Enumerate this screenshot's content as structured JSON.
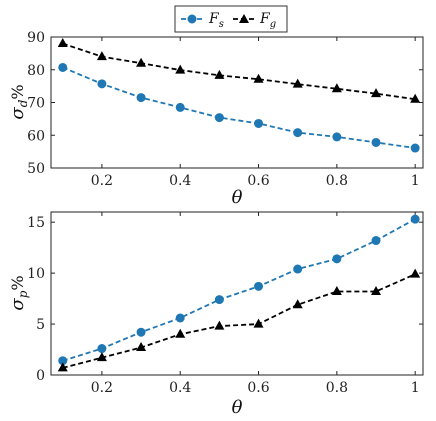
{
  "legend": {
    "entries": [
      {
        "label": "F",
        "sub": "s",
        "color": "#1f77b4",
        "marker": "circle"
      },
      {
        "label": "F",
        "sub": "g",
        "color": "#000000",
        "marker": "triangle"
      }
    ]
  },
  "chart_data": [
    {
      "type": "line",
      "title": "",
      "xlabel": "θ",
      "ylabel": "σ",
      "ylabel_sub": "d",
      "ylabel_suffix": "%",
      "xlim": [
        0.07,
        1.02
      ],
      "ylim": [
        50,
        90
      ],
      "xticks": [
        0.2,
        0.4,
        0.6,
        0.8,
        1
      ],
      "xtick_labels": [
        "0.2",
        "0.4",
        "0.6",
        "0.8",
        "1"
      ],
      "yticks": [
        50,
        60,
        70,
        80,
        90
      ],
      "ytick_labels": [
        "50",
        "60",
        "70",
        "80",
        "90"
      ],
      "x": [
        0.1,
        0.2,
        0.3,
        0.4,
        0.5,
        0.6,
        0.7,
        0.8,
        0.9,
        1.0
      ],
      "series": [
        {
          "key": "Fs",
          "color": "#1f77b4",
          "marker": "circle",
          "values": [
            80.7,
            75.7,
            71.5,
            68.5,
            65.4,
            63.6,
            60.8,
            59.5,
            57.8,
            56.1
          ]
        },
        {
          "key": "Fg",
          "color": "#000000",
          "marker": "triangle",
          "values": [
            88.0,
            84.0,
            82.0,
            79.9,
            78.3,
            77.1,
            75.6,
            74.2,
            72.7,
            71.0
          ]
        }
      ],
      "grid": false,
      "legend_position": "top-center"
    },
    {
      "type": "line",
      "title": "",
      "xlabel": "θ",
      "ylabel": "σ",
      "ylabel_sub": "p",
      "ylabel_suffix": "%",
      "xlim": [
        0.07,
        1.02
      ],
      "ylim": [
        0,
        16
      ],
      "xticks": [
        0.2,
        0.4,
        0.6,
        0.8,
        1
      ],
      "xtick_labels": [
        "0.2",
        "0.4",
        "0.6",
        "0.8",
        "1"
      ],
      "yticks": [
        0,
        5,
        10,
        15
      ],
      "ytick_labels": [
        "0",
        "5",
        "10",
        "15"
      ],
      "x": [
        0.1,
        0.2,
        0.3,
        0.4,
        0.5,
        0.6,
        0.7,
        0.8,
        0.9,
        1.0
      ],
      "series": [
        {
          "key": "Fs",
          "color": "#1f77b4",
          "marker": "circle",
          "values": [
            1.4,
            2.6,
            4.2,
            5.6,
            7.4,
            8.7,
            10.4,
            11.4,
            13.2,
            15.3
          ]
        },
        {
          "key": "Fg",
          "color": "#000000",
          "marker": "triangle",
          "values": [
            0.7,
            1.7,
            2.7,
            4.0,
            4.8,
            5.0,
            6.9,
            8.2,
            8.2,
            9.9
          ]
        }
      ],
      "grid": false
    }
  ]
}
